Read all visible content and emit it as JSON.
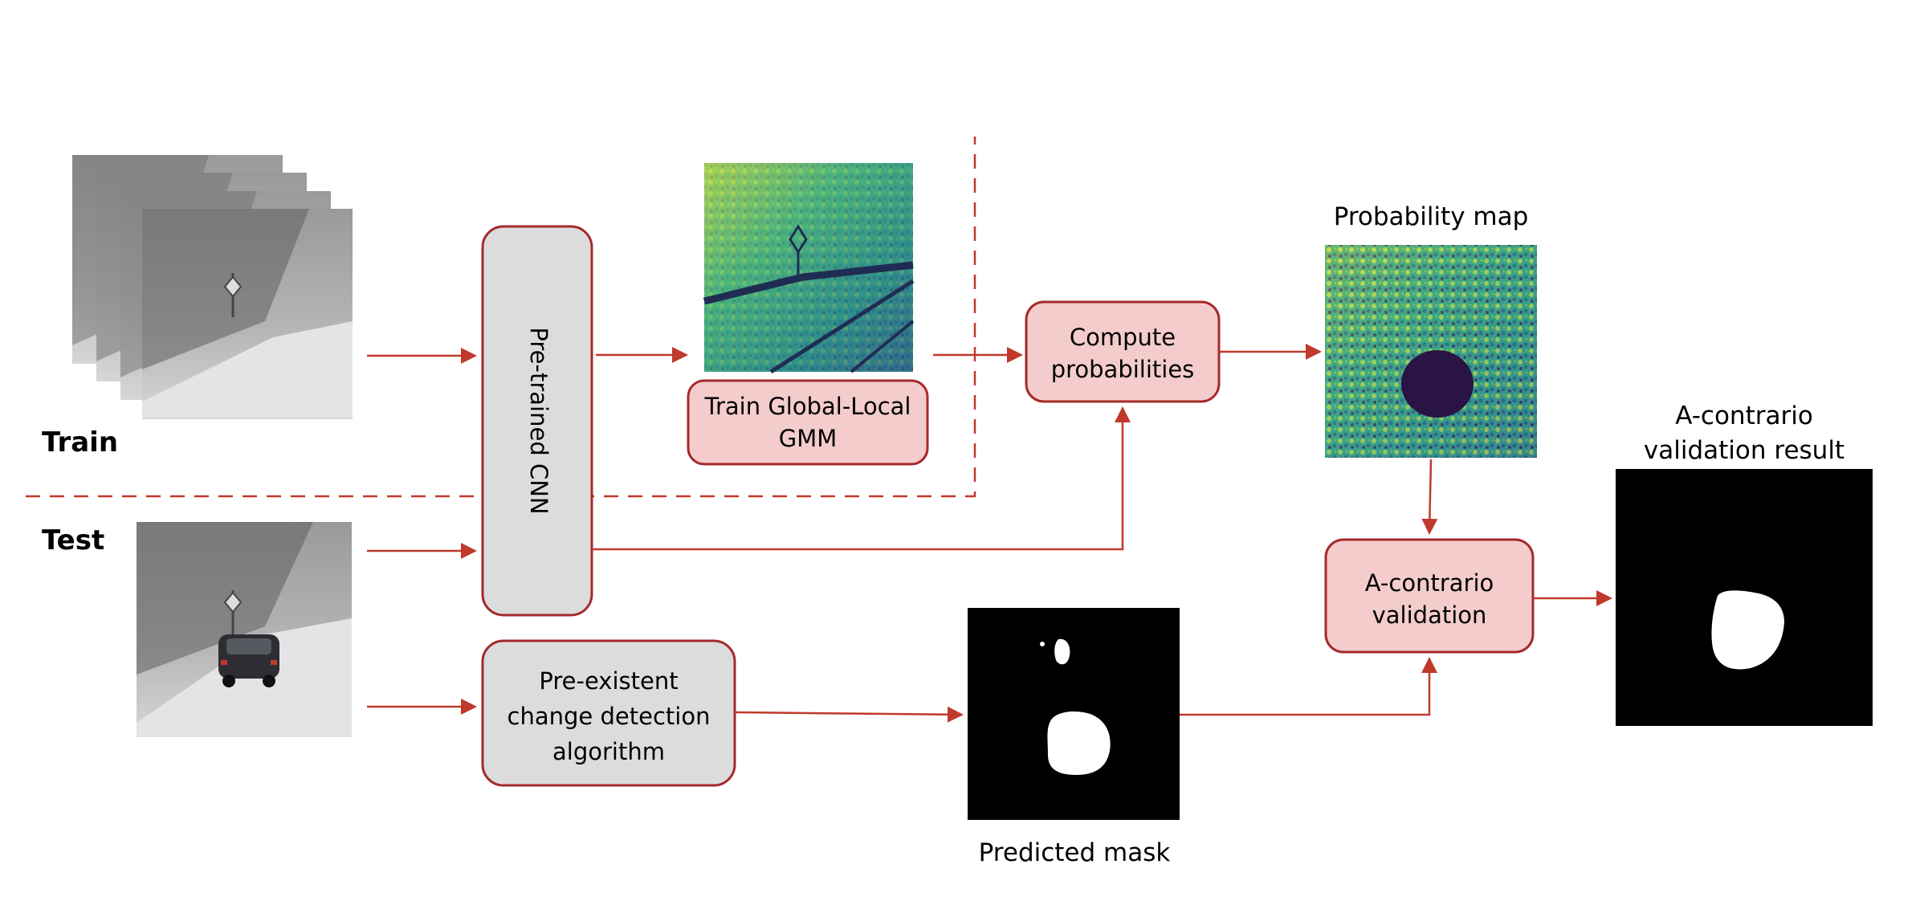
{
  "labels": {
    "train": "Train",
    "test": "Test"
  },
  "nodes": {
    "cnn": "Pre-trained CNN",
    "gmm_line1": "Train Global-Local",
    "gmm_line2": "GMM",
    "compute_line1": "Compute",
    "compute_line2": "probabilities",
    "changedet_line1": "Pre-existent",
    "changedet_line2": "change detection",
    "changedet_line3": "algorithm",
    "acontrario_line1": "A-contrario",
    "acontrario_line2": "validation"
  },
  "captions": {
    "probability_map": "Probability map",
    "predicted_mask": "Predicted mask",
    "result_line1": "A-contrario",
    "result_line2": "validation result"
  },
  "colors": {
    "arrow": "#c0392b",
    "pink_box_fill": "#f4cccc",
    "pink_box_stroke": "#a52a2a",
    "gray_box_fill": "#dcdcdc",
    "gray_box_stroke": "#a52a2a",
    "viridis_dark": "#3b1d5f",
    "viridis_mid": "#2a8a8a",
    "viridis_light": "#c8e04a"
  }
}
